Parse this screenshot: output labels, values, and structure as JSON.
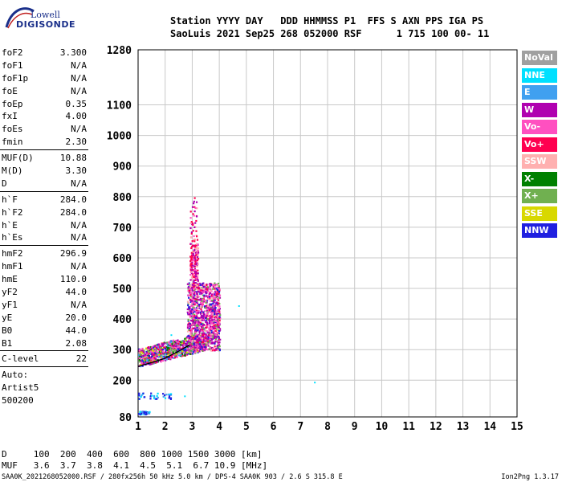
{
  "logo": {
    "line1": "Lowell",
    "line2": "DIGISONDE"
  },
  "header": {
    "line1": "Station YYYY DAY   DDD HHMMSS P1  FFS S AXN PPS IGA PS",
    "line2": "SaoLuis 2021 Sep25 268 052000 RSF      1 715 100 00- 11"
  },
  "params": {
    "group1": [
      {
        "name": "foF2",
        "value": "3.300"
      },
      {
        "name": "foF1",
        "value": "N/A"
      },
      {
        "name": "foF1p",
        "value": "N/A"
      },
      {
        "name": "foE",
        "value": "N/A"
      },
      {
        "name": "foEp",
        "value": "0.35"
      },
      {
        "name": "fxI",
        "value": "4.00"
      },
      {
        "name": "foEs",
        "value": "N/A"
      },
      {
        "name": "fmin",
        "value": "2.30"
      }
    ],
    "group2": [
      {
        "name": "MUF(D)",
        "value": "10.88"
      },
      {
        "name": "M(D)",
        "value": "3.30"
      },
      {
        "name": "D",
        "value": "N/A"
      }
    ],
    "group3": [
      {
        "name": "h`F",
        "value": "284.0"
      },
      {
        "name": "h`F2",
        "value": "284.0"
      },
      {
        "name": "h`E",
        "value": "N/A"
      },
      {
        "name": "h`Es",
        "value": "N/A"
      }
    ],
    "group4": [
      {
        "name": "hmF2",
        "value": "296.9"
      },
      {
        "name": "hmF1",
        "value": "N/A"
      },
      {
        "name": "hmE",
        "value": "110.0"
      },
      {
        "name": "yF2",
        "value": "44.0"
      },
      {
        "name": "yF1",
        "value": "N/A"
      },
      {
        "name": "yE",
        "value": "20.0"
      },
      {
        "name": "B0",
        "value": "44.0"
      },
      {
        "name": "B1",
        "value": "2.08"
      }
    ],
    "group5": [
      {
        "name": "C-level",
        "value": "22"
      }
    ],
    "auto": [
      "Auto:",
      "Artist5",
      "500200"
    ]
  },
  "legend": [
    {
      "label": "NoVal",
      "color": "#a0a0a0"
    },
    {
      "label": "NNE",
      "color": "#00e0ff"
    },
    {
      "label": "E",
      "color": "#40a0f0"
    },
    {
      "label": "W",
      "color": "#b000b0"
    },
    {
      "label": "Vo-",
      "color": "#ff50c0"
    },
    {
      "label": "Vo+",
      "color": "#ff0050"
    },
    {
      "label": "SSW",
      "color": "#ffb0b0"
    },
    {
      "label": "X-",
      "color": "#008000"
    },
    {
      "label": "X+",
      "color": "#70b050"
    },
    {
      "label": "SSE",
      "color": "#d8d800"
    },
    {
      "label": "NNW",
      "color": "#2020e0"
    }
  ],
  "muf_table": {
    "line1": "D     100  200  400  600  800 1000 1500 3000 [km]",
    "line2": "MUF   3.6  3.7  3.8  4.1  4.5  5.1  6.7 10.9 [MHz]"
  },
  "footer": {
    "left": "SAA0K_2021268052000.RSF / 280fx256h 50 kHz 5.0 km / DPS-4 SAA0K 903 / 2.6 S 315.8 E",
    "right": "Ion2Png 1.3.17"
  },
  "chart_data": {
    "type": "scatter",
    "title": "",
    "xlabel": "",
    "ylabel": "",
    "xlim": [
      1,
      15
    ],
    "ylim": [
      80,
      1280
    ],
    "x_ticks": [
      1,
      2,
      3,
      4,
      5,
      6,
      7,
      8,
      9,
      10,
      11,
      12,
      13,
      14,
      15
    ],
    "y_ticks": [
      80,
      200,
      300,
      400,
      500,
      600,
      700,
      800,
      900,
      1000,
      1100,
      1280
    ],
    "grid": true,
    "trace_profile": {
      "frequency_mhz": [
        1.0,
        1.5,
        2.0,
        2.5,
        2.9
      ],
      "height_km": [
        245,
        258,
        272,
        295,
        315
      ]
    },
    "echo_regions": [
      {
        "fmin": 1.0,
        "fmax": 3.5,
        "hmin": 240,
        "hmax": 340,
        "mode": "O_dense"
      },
      {
        "fmin": 2.8,
        "fmax": 4.0,
        "hmin": 300,
        "hmax": 520,
        "mode": "spread"
      },
      {
        "fmin": 2.9,
        "fmax": 3.2,
        "hmin": 500,
        "hmax": 800,
        "mode": "spread_high"
      },
      {
        "fmin": 1.0,
        "fmax": 2.2,
        "hmin": 140,
        "hmax": 160,
        "mode": "low_blue"
      },
      {
        "fmin": 1.0,
        "fmax": 1.4,
        "hmin": 90,
        "hmax": 100,
        "mode": "low_blue"
      }
    ],
    "isolated_points": [
      {
        "f": 7.5,
        "h": 195
      },
      {
        "f": 2.7,
        "h": 150
      },
      {
        "f": 2.2,
        "h": 350
      },
      {
        "f": 4.7,
        "h": 445
      }
    ]
  }
}
